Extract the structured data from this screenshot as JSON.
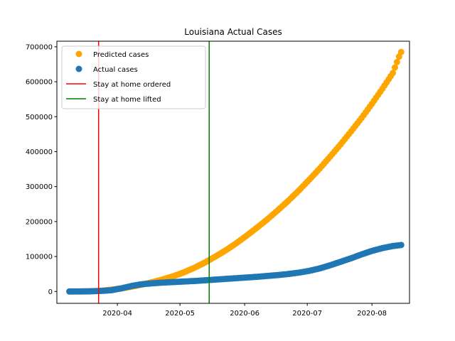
{
  "chart_data": {
    "type": "scatter",
    "title": "Louisiana Actual Cases",
    "xlabel": "",
    "ylabel": "",
    "x_ticks": [
      "2020-04-01",
      "2020-05-01",
      "2020-06-01",
      "2020-07-01",
      "2020-08-01"
    ],
    "y_ticks": [
      0,
      100000,
      200000,
      300000,
      400000,
      500000,
      600000,
      700000
    ],
    "xlim": [
      "2020-03-03",
      "2020-08-19"
    ],
    "ylim": [
      -34000,
      716000
    ],
    "legend_position": "upper-left",
    "grid": false,
    "series": [
      {
        "name": "Predicted cases",
        "color": "#ffa500",
        "marker": "circle",
        "points": [
          [
            "2020-03-09",
            0
          ],
          [
            "2020-03-14",
            0
          ],
          [
            "2020-03-19",
            500
          ],
          [
            "2020-03-24",
            2000
          ],
          [
            "2020-03-29",
            5000
          ],
          [
            "2020-04-03",
            9000
          ],
          [
            "2020-04-08",
            14000
          ],
          [
            "2020-04-13",
            20000
          ],
          [
            "2020-04-18",
            27000
          ],
          [
            "2020-04-23",
            35000
          ],
          [
            "2020-04-28",
            44000
          ],
          [
            "2020-05-03",
            55000
          ],
          [
            "2020-05-08",
            68000
          ],
          [
            "2020-05-13",
            83000
          ],
          [
            "2020-05-18",
            100000
          ],
          [
            "2020-05-23",
            118000
          ],
          [
            "2020-05-28",
            138000
          ],
          [
            "2020-06-02",
            160000
          ],
          [
            "2020-06-07",
            183000
          ],
          [
            "2020-06-12",
            207000
          ],
          [
            "2020-06-17",
            233000
          ],
          [
            "2020-06-22",
            260000
          ],
          [
            "2020-06-27",
            289000
          ],
          [
            "2020-07-02",
            320000
          ],
          [
            "2020-07-07",
            352000
          ],
          [
            "2020-07-12",
            386000
          ],
          [
            "2020-07-17",
            421000
          ],
          [
            "2020-07-22",
            458000
          ],
          [
            "2020-07-27",
            496000
          ],
          [
            "2020-08-01",
            537000
          ],
          [
            "2020-08-06",
            580000
          ],
          [
            "2020-08-11",
            625000
          ],
          [
            "2020-08-14",
            672000
          ],
          [
            "2020-08-15",
            685000
          ]
        ]
      },
      {
        "name": "Actual cases",
        "color": "#1f77b4",
        "marker": "circle",
        "points": [
          [
            "2020-03-09",
            0
          ],
          [
            "2020-03-14",
            100
          ],
          [
            "2020-03-19",
            500
          ],
          [
            "2020-03-24",
            1500
          ],
          [
            "2020-03-29",
            3500
          ],
          [
            "2020-04-03",
            9000
          ],
          [
            "2020-04-08",
            16000
          ],
          [
            "2020-04-13",
            21000
          ],
          [
            "2020-04-18",
            23500
          ],
          [
            "2020-04-23",
            25500
          ],
          [
            "2020-04-28",
            27000
          ],
          [
            "2020-05-03",
            28500
          ],
          [
            "2020-05-08",
            30000
          ],
          [
            "2020-05-13",
            32000
          ],
          [
            "2020-05-18",
            34000
          ],
          [
            "2020-05-23",
            36000
          ],
          [
            "2020-05-28",
            38000
          ],
          [
            "2020-06-02",
            40000
          ],
          [
            "2020-06-07",
            42000
          ],
          [
            "2020-06-12",
            44500
          ],
          [
            "2020-06-17",
            47000
          ],
          [
            "2020-06-22",
            50000
          ],
          [
            "2020-06-27",
            54000
          ],
          [
            "2020-07-02",
            59000
          ],
          [
            "2020-07-07",
            66000
          ],
          [
            "2020-07-12",
            75000
          ],
          [
            "2020-07-17",
            85000
          ],
          [
            "2020-07-22",
            95000
          ],
          [
            "2020-07-27",
            106000
          ],
          [
            "2020-08-01",
            116000
          ],
          [
            "2020-08-06",
            124000
          ],
          [
            "2020-08-11",
            130000
          ],
          [
            "2020-08-15",
            133000
          ]
        ]
      }
    ],
    "vlines": [
      {
        "name": "Stay at home ordered",
        "x": "2020-03-23",
        "color": "#ff0000"
      },
      {
        "name": "Stay at home lifted",
        "x": "2020-05-15",
        "color": "#008000"
      }
    ]
  }
}
